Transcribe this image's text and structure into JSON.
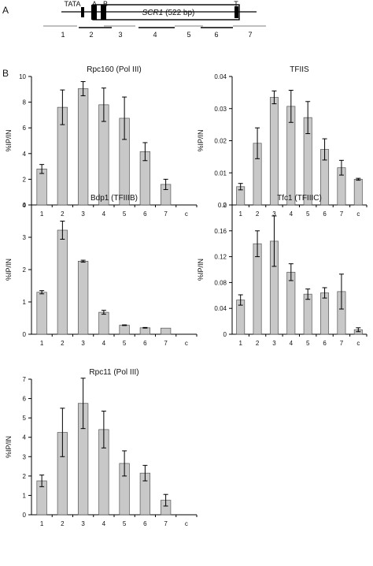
{
  "panel_a": {
    "label": "A",
    "element_labels": [
      "TATA",
      "A",
      "B",
      "T"
    ],
    "gene_name": "SCR1",
    "gene_size": "(522 bp)",
    "regions": [
      "1",
      "2",
      "3",
      "4",
      "5",
      "6",
      "7"
    ]
  },
  "panel_b": {
    "label": "B"
  },
  "chart_data": [
    {
      "type": "bar",
      "title": "Rpc160 (Pol III)",
      "ylabel": "%IP/IN",
      "xlabel": "",
      "categories": [
        "1",
        "2",
        "3",
        "4",
        "5",
        "6",
        "7",
        "c"
      ],
      "values": [
        2.8,
        7.6,
        9.05,
        7.8,
        6.75,
        4.15,
        1.6,
        null
      ],
      "errors": [
        0.35,
        1.35,
        0.55,
        1.3,
        1.65,
        0.7,
        0.4,
        null
      ],
      "yticks": [
        "0",
        "2",
        "4",
        "6",
        "8",
        "10"
      ],
      "ylim": [
        0,
        10
      ],
      "grid": false,
      "bar_color": "#c8c8c8"
    },
    {
      "type": "bar",
      "title": "TFIIS",
      "ylabel": "%IP/IN",
      "xlabel": "",
      "categories": [
        "1",
        "2",
        "3",
        "4",
        "5",
        "6",
        "7",
        "c"
      ],
      "values": [
        0.0057,
        0.0192,
        0.0335,
        0.0307,
        0.0272,
        0.0173,
        0.0116,
        0.008
      ],
      "errors": [
        0.001,
        0.0048,
        0.002,
        0.005,
        0.005,
        0.0033,
        0.0023,
        0.0003
      ],
      "yticks": [
        "0",
        "0.01",
        "0.02",
        "0.03",
        "0.04"
      ],
      "ylim": [
        0,
        0.04
      ],
      "grid": false,
      "bar_color": "#c8c8c8"
    },
    {
      "type": "bar",
      "title": "Bdp1 (TFIIIB)",
      "ylabel": "%IP/IN",
      "xlabel": "",
      "categories": [
        "1",
        "2",
        "3",
        "4",
        "5",
        "6",
        "7",
        "c"
      ],
      "values": [
        1.3,
        3.22,
        2.26,
        0.68,
        0.28,
        0.2,
        0.19,
        null
      ],
      "errors": [
        0.05,
        0.28,
        0.03,
        0.06,
        0.01,
        0.01,
        0.0,
        null
      ],
      "yticks": [
        "0",
        "1",
        "2",
        "3",
        "4"
      ],
      "ylim": [
        0,
        4
      ],
      "grid": false,
      "bar_color": "#c8c8c8"
    },
    {
      "type": "bar",
      "title": "Tfc1 (TFIIIC)",
      "ylabel": "%IP/IN",
      "xlabel": "",
      "categories": [
        "1",
        "2",
        "3",
        "4",
        "5",
        "6",
        "7",
        "c"
      ],
      "values": [
        0.053,
        0.14,
        0.144,
        0.096,
        0.062,
        0.064,
        0.066,
        0.007
      ],
      "errors": [
        0.008,
        0.02,
        0.039,
        0.013,
        0.008,
        0.008,
        0.027,
        0.003
      ],
      "yticks": [
        "0",
        "0.04",
        "0.08",
        "0.12",
        "0.16",
        "0.2"
      ],
      "ylim": [
        0,
        0.2
      ],
      "grid": false,
      "bar_color": "#c8c8c8"
    },
    {
      "type": "bar",
      "title": "Rpc11 (Pol III)",
      "ylabel": "%IP/IN",
      "xlabel": "",
      "categories": [
        "1",
        "2",
        "3",
        "4",
        "5",
        "6",
        "7",
        "c"
      ],
      "values": [
        1.75,
        4.25,
        5.75,
        4.4,
        2.65,
        2.15,
        0.75,
        null
      ],
      "errors": [
        0.3,
        1.25,
        1.3,
        0.95,
        0.65,
        0.4,
        0.3,
        null
      ],
      "yticks": [
        "0",
        "1",
        "2",
        "3",
        "4",
        "5",
        "6",
        "7"
      ],
      "ylim": [
        0,
        7
      ],
      "grid": false,
      "bar_color": "#c8c8c8"
    }
  ]
}
